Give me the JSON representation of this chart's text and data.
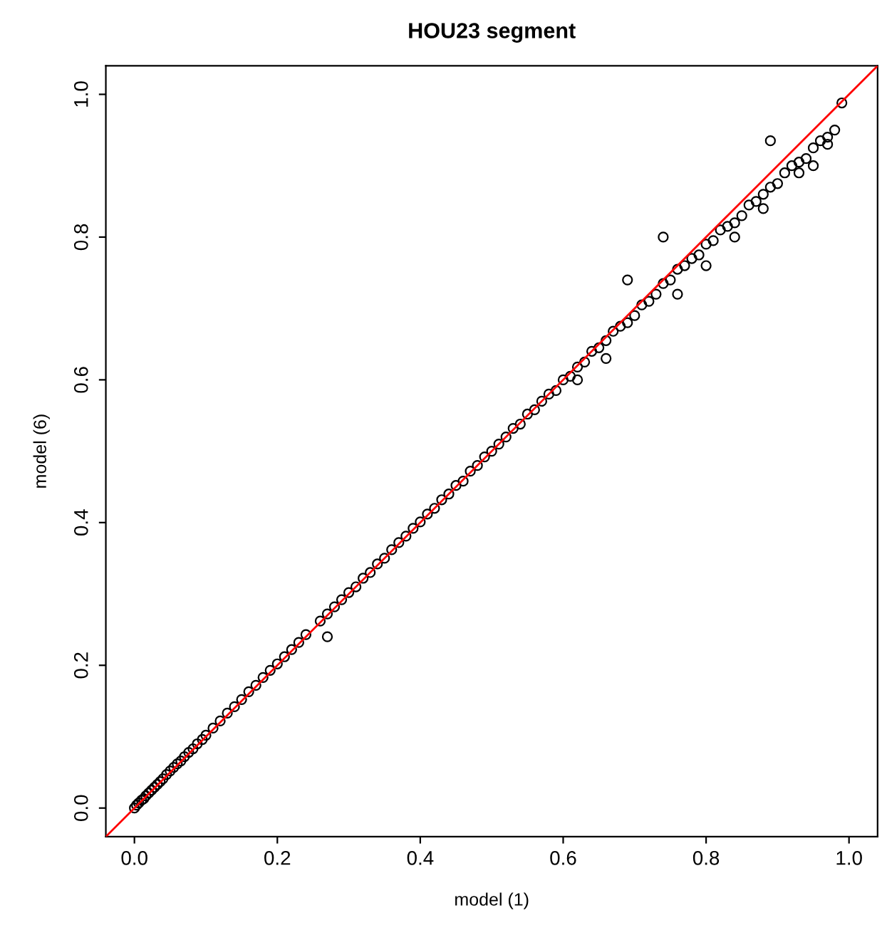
{
  "chart_data": {
    "type": "scatter",
    "title": "HOU23 segment",
    "xlabel": "model (1)",
    "ylabel": "model (6)",
    "xlim": [
      -0.04,
      1.04
    ],
    "ylim": [
      -0.04,
      1.04
    ],
    "xticks": [
      {
        "value": 0,
        "label": "0.0"
      },
      0.2,
      0.4,
      0.6,
      0.8,
      {
        "value": 1,
        "label": "1.0"
      }
    ],
    "yticks": [
      {
        "value": 0,
        "label": "0.0"
      },
      0.2,
      0.4,
      0.6,
      0.8,
      {
        "value": 1,
        "label": "1.0"
      }
    ],
    "grid": false,
    "marker": "circle",
    "series": [
      {
        "color": "#000000",
        "x": [
          0.0,
          0.003,
          0.006,
          0.01,
          0.013,
          0.016,
          0.02,
          0.024,
          0.028,
          0.032,
          0.036,
          0.04,
          0.045,
          0.05,
          0.055,
          0.06,
          0.065,
          0.07,
          0.076,
          0.082,
          0.088,
          0.095,
          0.1,
          0.11,
          0.12,
          0.13,
          0.14,
          0.15,
          0.16,
          0.17,
          0.18,
          0.19,
          0.2,
          0.21,
          0.22,
          0.23,
          0.24,
          0.26,
          0.27,
          0.28,
          0.29,
          0.3,
          0.31,
          0.32,
          0.33,
          0.34,
          0.35,
          0.36,
          0.37,
          0.38,
          0.39,
          0.4,
          0.41,
          0.42,
          0.43,
          0.44,
          0.45,
          0.46,
          0.47,
          0.48,
          0.49,
          0.5,
          0.51,
          0.52,
          0.53,
          0.54,
          0.55,
          0.56,
          0.57,
          0.58,
          0.59,
          0.6,
          0.61,
          0.62,
          0.63,
          0.64,
          0.65,
          0.66,
          0.67,
          0.68,
          0.69,
          0.69,
          0.7,
          0.71,
          0.72,
          0.73,
          0.74,
          0.74,
          0.75,
          0.76,
          0.77,
          0.78,
          0.79,
          0.8,
          0.81,
          0.82,
          0.83,
          0.84,
          0.85,
          0.86,
          0.87,
          0.88,
          0.89,
          0.89,
          0.9,
          0.91,
          0.92,
          0.93,
          0.94,
          0.95,
          0.96,
          0.97,
          0.98,
          0.99,
          0.95,
          0.93,
          0.97,
          0.88,
          0.84,
          0.8,
          0.76,
          0.66,
          0.62,
          0.27
        ],
        "values": [
          0.0,
          0.004,
          0.007,
          0.011,
          0.013,
          0.017,
          0.021,
          0.025,
          0.029,
          0.033,
          0.037,
          0.041,
          0.047,
          0.052,
          0.057,
          0.062,
          0.066,
          0.072,
          0.078,
          0.083,
          0.09,
          0.096,
          0.102,
          0.112,
          0.122,
          0.133,
          0.142,
          0.152,
          0.163,
          0.172,
          0.183,
          0.193,
          0.202,
          0.212,
          0.222,
          0.232,
          0.243,
          0.262,
          0.272,
          0.282,
          0.292,
          0.302,
          0.31,
          0.322,
          0.33,
          0.342,
          0.35,
          0.362,
          0.372,
          0.381,
          0.392,
          0.401,
          0.412,
          0.42,
          0.432,
          0.44,
          0.452,
          0.458,
          0.472,
          0.48,
          0.492,
          0.5,
          0.51,
          0.52,
          0.532,
          0.538,
          0.552,
          0.558,
          0.57,
          0.58,
          0.585,
          0.6,
          0.605,
          0.618,
          0.625,
          0.64,
          0.645,
          0.655,
          0.668,
          0.675,
          0.74,
          0.68,
          0.69,
          0.705,
          0.71,
          0.72,
          0.8,
          0.735,
          0.74,
          0.755,
          0.76,
          0.77,
          0.775,
          0.79,
          0.795,
          0.81,
          0.815,
          0.82,
          0.83,
          0.845,
          0.85,
          0.86,
          0.935,
          0.87,
          0.875,
          0.89,
          0.9,
          0.905,
          0.91,
          0.925,
          0.935,
          0.94,
          0.95,
          0.988,
          0.9,
          0.89,
          0.93,
          0.84,
          0.8,
          0.76,
          0.72,
          0.63,
          0.6,
          0.24
        ]
      },
      {
        "type": "line",
        "marker": "none",
        "color": "#ff0000",
        "x": [
          -0.04,
          1.04
        ],
        "values": [
          -0.04,
          1.04
        ]
      }
    ]
  }
}
